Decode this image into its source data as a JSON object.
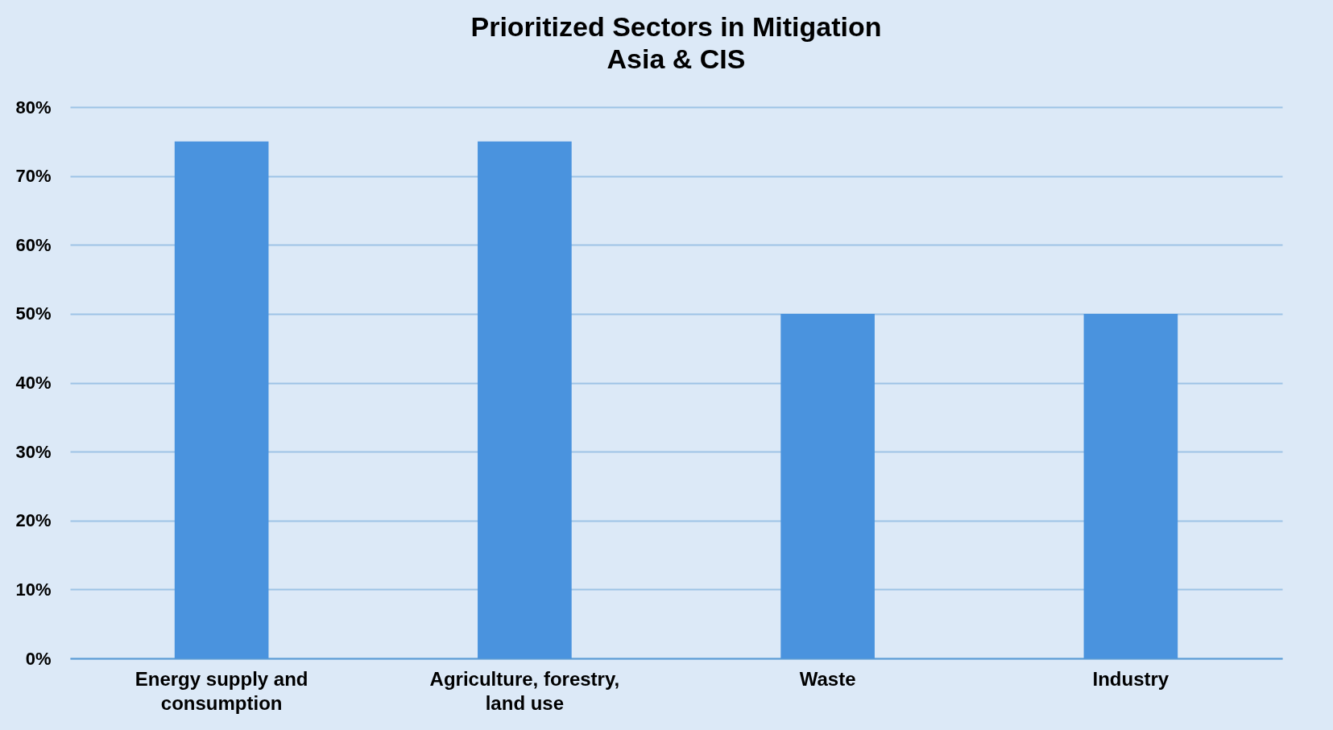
{
  "chart_data": {
    "type": "bar",
    "title": "Prioritized Sectors in Mitigation",
    "subtitle": "Asia & CIS",
    "categories": [
      "Energy supply and consumption",
      "Agriculture, forestry, land use",
      "Waste",
      "Industry"
    ],
    "values": [
      75,
      75,
      50,
      50
    ],
    "color": "#4a93de",
    "ylim": [
      0,
      80
    ],
    "yticks": [
      {
        "value": 0,
        "label": "0%"
      },
      {
        "value": 10,
        "label": "10%"
      },
      {
        "value": 20,
        "label": "20%"
      },
      {
        "value": 30,
        "label": "30%"
      },
      {
        "value": 40,
        "label": "40%"
      },
      {
        "value": 50,
        "label": "50%"
      },
      {
        "value": 60,
        "label": "60%"
      },
      {
        "value": 70,
        "label": "70%"
      },
      {
        "value": 80,
        "label": "80%"
      }
    ],
    "grid": "y"
  }
}
